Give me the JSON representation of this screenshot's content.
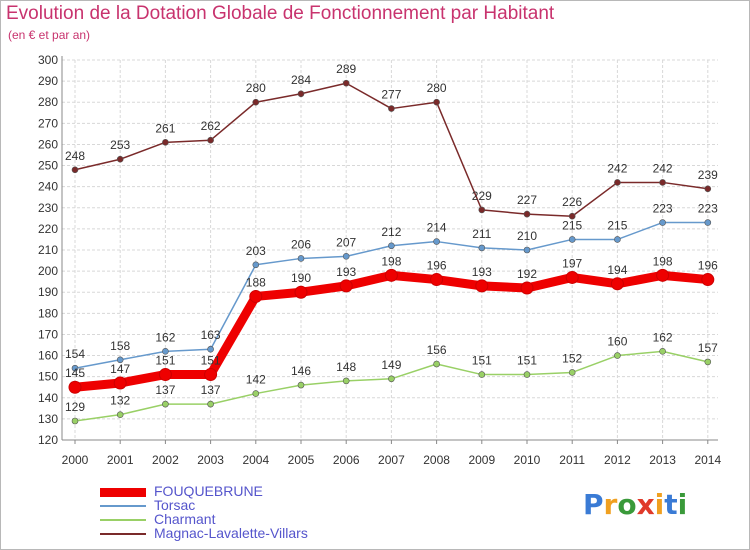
{
  "header": {
    "title": "Evolution de la Dotation Globale de Fonctionnement par Habitant",
    "subtitle": "(en € et par an)"
  },
  "logo": {
    "text": "Proxiti",
    "letters": [
      "P",
      "r",
      "o",
      "x",
      "i",
      "t",
      "i"
    ],
    "colors": [
      "#3a7bd5",
      "#f0a020",
      "#3a9a3a",
      "#e03a2a",
      "#f0a020",
      "#3a7bd5",
      "#3a9a3a"
    ]
  },
  "chart_data": {
    "type": "line",
    "x": [
      "2000",
      "2001",
      "2002",
      "2003",
      "2004",
      "2005",
      "2006",
      "2007",
      "2008",
      "2009",
      "2010",
      "2011",
      "2012",
      "2013",
      "2014"
    ],
    "ylim": [
      120,
      300
    ],
    "yticks": [
      120,
      130,
      140,
      150,
      160,
      170,
      180,
      190,
      200,
      210,
      220,
      230,
      240,
      250,
      260,
      270,
      280,
      290,
      300
    ],
    "grid": true,
    "legend_placement": "bottom-left",
    "series": [
      {
        "name": "FOUQUEBRUNE",
        "color": "#ee0000",
        "values": [
          145,
          147,
          151,
          151,
          188,
          190,
          193,
          198,
          196,
          193,
          192,
          197,
          194,
          198,
          196
        ],
        "labels": [
          "145",
          "147",
          "151",
          "151",
          "188",
          "190",
          "193",
          "198",
          "196",
          "193",
          "192",
          "197",
          "194",
          "198",
          "196"
        ]
      },
      {
        "name": "Torsac",
        "color": "#6699cc",
        "values": [
          154,
          158,
          162,
          163,
          203,
          206,
          207,
          212,
          214,
          211,
          210,
          215,
          215,
          223,
          223
        ],
        "labels": [
          "154",
          "158",
          "162",
          "163",
          "203",
          "206",
          "207",
          "212",
          "214",
          "211",
          "210",
          "215",
          "215",
          "223",
          "223"
        ]
      },
      {
        "name": "Charmant",
        "color": "#99d066",
        "values": [
          129,
          132,
          137,
          137,
          142,
          146,
          148,
          149,
          156,
          151,
          151,
          152,
          160,
          162,
          157
        ],
        "labels": [
          "129",
          "132",
          "137",
          "137",
          "142",
          "146",
          "148",
          "149",
          "156",
          "151",
          "151",
          "152",
          "160",
          "162",
          "157"
        ]
      },
      {
        "name": "Magnac-Lavalette-Villars",
        "color": "#7a2a2a",
        "values": [
          248,
          253,
          261,
          262,
          280,
          284,
          289,
          277,
          280,
          229,
          227,
          226,
          242,
          242,
          239
        ],
        "labels": [
          "248",
          "253",
          "261",
          "262",
          "280",
          "284",
          "289",
          "277",
          "280",
          "229",
          "227",
          "226",
          "242",
          "242",
          "239"
        ]
      }
    ]
  }
}
